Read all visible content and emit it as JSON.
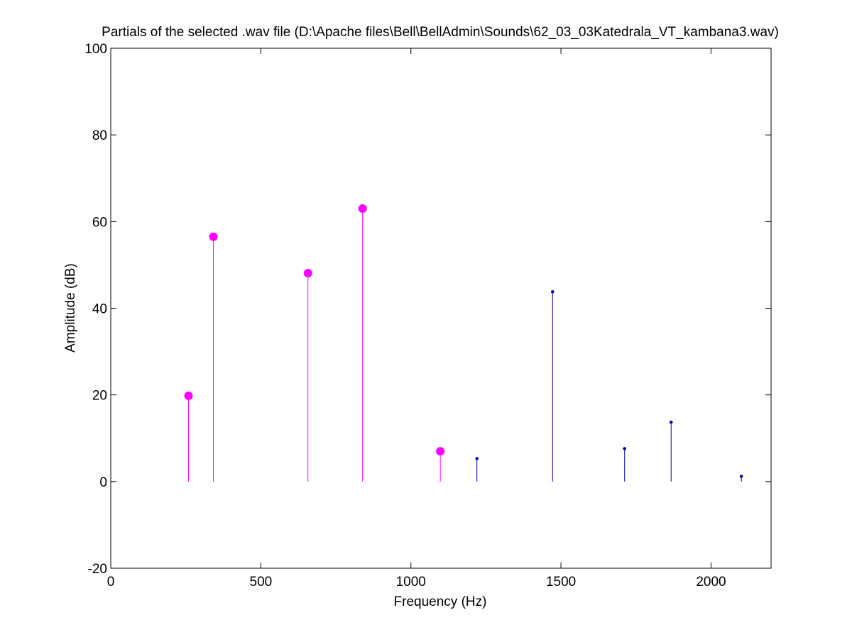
{
  "chart_data": {
    "type": "stem",
    "title": "Partials of the selected .wav file (D:\\Apache files\\Bell\\BellAdmin\\Sounds\\62_03_03Katedrala_VT_kambana3.wav)",
    "xlabel": "Frequency (Hz)",
    "ylabel": "Amplitude (dB)",
    "xlim": [
      0,
      2200
    ],
    "ylim": [
      -20,
      100
    ],
    "xticks": [
      0,
      500,
      1000,
      1500,
      2000
    ],
    "yticks": [
      -20,
      0,
      20,
      40,
      60,
      80,
      100
    ],
    "grid": false,
    "series": [
      {
        "color": "#ff00ff",
        "marker": "large-circle",
        "x": [
          259,
          342,
          657,
          839,
          1098
        ],
        "y": [
          19.8,
          56.5,
          48.1,
          63.0,
          7.0
        ]
      },
      {
        "color": "#0000aa",
        "marker": "small-dot",
        "x": [
          1220,
          1472,
          1712,
          1867,
          2101
        ],
        "y": [
          5.3,
          43.8,
          7.6,
          13.7,
          1.2
        ]
      }
    ]
  }
}
